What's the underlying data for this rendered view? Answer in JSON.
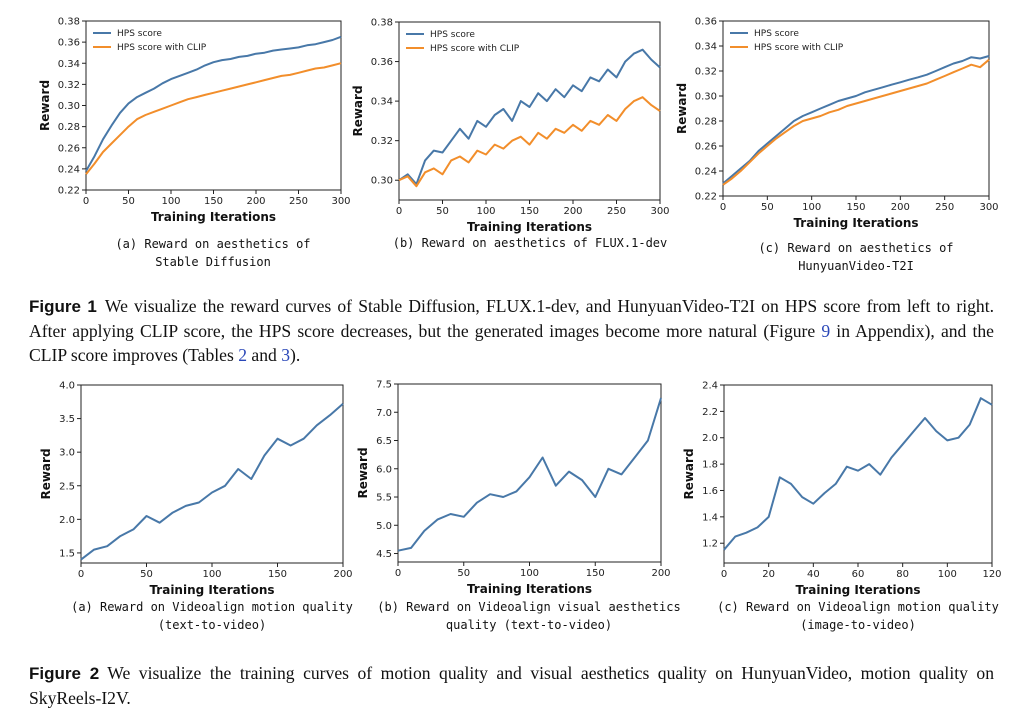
{
  "figure1": {
    "label": "Figure 1",
    "parts": [
      "We visualize the reward curves of Stable Diffusion, FLUX.1-dev, and HunyuanVideo-T2I on HPS score from left to right. After applying CLIP score, the HPS score decreases, but the generated images become more natural (Figure ",
      "9",
      " in Appendix), and the CLIP score improves (Tables ",
      "2",
      " and ",
      "3",
      ")."
    ]
  },
  "figure2": {
    "label": "Figure 2",
    "text": "We visualize the training curves of motion quality and visual aesthetics quality on HunyuanVideo, motion quality on SkyReels-I2V."
  },
  "colors": {
    "blue": "#4878a8",
    "orange": "#f28e2b",
    "axis": "#222222"
  },
  "chart_data": [
    {
      "type": "line",
      "caption": [
        "(a) Reward on aesthetics of",
        "Stable Diffusion"
      ],
      "xlabel": "Training Iterations",
      "ylabel": "Reward",
      "xlim": [
        0,
        300
      ],
      "ylim": [
        0.22,
        0.38
      ],
      "xticks": [
        0,
        50,
        100,
        150,
        200,
        250,
        300
      ],
      "yticks": [
        0.22,
        0.24,
        0.26,
        0.28,
        0.3,
        0.32,
        0.34,
        0.36,
        0.38
      ],
      "ytick_labels": [
        "0.22",
        "0.24",
        "0.26",
        "0.28",
        "0.30",
        "0.32",
        "0.34",
        "0.36",
        "0.38"
      ],
      "legend": "top-left",
      "series": [
        {
          "name": "HPS score",
          "color": "#4878a8",
          "x": [
            0,
            10,
            20,
            30,
            40,
            50,
            60,
            70,
            80,
            90,
            100,
            110,
            120,
            130,
            140,
            150,
            160,
            170,
            180,
            190,
            200,
            210,
            220,
            230,
            240,
            250,
            260,
            270,
            280,
            290,
            300
          ],
          "y": [
            0.238,
            0.252,
            0.268,
            0.281,
            0.293,
            0.302,
            0.308,
            0.312,
            0.316,
            0.321,
            0.325,
            0.328,
            0.331,
            0.334,
            0.338,
            0.341,
            0.343,
            0.344,
            0.346,
            0.347,
            0.349,
            0.35,
            0.352,
            0.353,
            0.354,
            0.355,
            0.357,
            0.358,
            0.36,
            0.362,
            0.365
          ]
        },
        {
          "name": "HPS score with CLIP",
          "color": "#f28e2b",
          "x": [
            0,
            10,
            20,
            30,
            40,
            50,
            60,
            70,
            80,
            90,
            100,
            110,
            120,
            130,
            140,
            150,
            160,
            170,
            180,
            190,
            200,
            210,
            220,
            230,
            240,
            250,
            260,
            270,
            280,
            290,
            300
          ],
          "y": [
            0.235,
            0.245,
            0.256,
            0.264,
            0.272,
            0.28,
            0.287,
            0.291,
            0.294,
            0.297,
            0.3,
            0.303,
            0.306,
            0.308,
            0.31,
            0.312,
            0.314,
            0.316,
            0.318,
            0.32,
            0.322,
            0.324,
            0.326,
            0.328,
            0.329,
            0.331,
            0.333,
            0.335,
            0.336,
            0.338,
            0.34
          ]
        }
      ]
    },
    {
      "type": "line",
      "caption": [
        "(b) Reward on aesthetics of FLUX.1-dev"
      ],
      "xlabel": "Training Iterations",
      "ylabel": "Reward",
      "xlim": [
        0,
        300
      ],
      "ylim": [
        0.29,
        0.38
      ],
      "xticks": [
        0,
        50,
        100,
        150,
        200,
        250,
        300
      ],
      "yticks": [
        0.3,
        0.32,
        0.34,
        0.36,
        0.38
      ],
      "ytick_labels": [
        "0.30",
        "0.32",
        "0.34",
        "0.36",
        "0.38"
      ],
      "legend": "top-left",
      "series": [
        {
          "name": "HPS score",
          "color": "#4878a8",
          "x": [
            0,
            10,
            20,
            30,
            40,
            50,
            60,
            70,
            80,
            90,
            100,
            110,
            120,
            130,
            140,
            150,
            160,
            170,
            180,
            190,
            200,
            210,
            220,
            230,
            240,
            250,
            260,
            270,
            280,
            290,
            300
          ],
          "y": [
            0.3,
            0.303,
            0.298,
            0.31,
            0.315,
            0.314,
            0.32,
            0.326,
            0.321,
            0.33,
            0.327,
            0.333,
            0.336,
            0.33,
            0.34,
            0.337,
            0.344,
            0.34,
            0.346,
            0.342,
            0.348,
            0.345,
            0.352,
            0.35,
            0.356,
            0.352,
            0.36,
            0.364,
            0.366,
            0.361,
            0.357
          ]
        },
        {
          "name": "HPS score with CLIP",
          "color": "#f28e2b",
          "x": [
            0,
            10,
            20,
            30,
            40,
            50,
            60,
            70,
            80,
            90,
            100,
            110,
            120,
            130,
            140,
            150,
            160,
            170,
            180,
            190,
            200,
            210,
            220,
            230,
            240,
            250,
            260,
            270,
            280,
            290,
            300
          ],
          "y": [
            0.3,
            0.302,
            0.297,
            0.304,
            0.306,
            0.303,
            0.31,
            0.312,
            0.309,
            0.315,
            0.313,
            0.318,
            0.316,
            0.32,
            0.322,
            0.318,
            0.324,
            0.321,
            0.326,
            0.324,
            0.328,
            0.325,
            0.33,
            0.328,
            0.333,
            0.33,
            0.336,
            0.34,
            0.342,
            0.338,
            0.335
          ]
        }
      ]
    },
    {
      "type": "line",
      "caption": [
        "(c) Reward on aesthetics of",
        "HunyuanVideo-T2I"
      ],
      "xlabel": "Training Iterations",
      "ylabel": "Reward",
      "xlim": [
        0,
        300
      ],
      "ylim": [
        0.22,
        0.36
      ],
      "xticks": [
        0,
        50,
        100,
        150,
        200,
        250,
        300
      ],
      "yticks": [
        0.22,
        0.24,
        0.26,
        0.28,
        0.3,
        0.32,
        0.34,
        0.36
      ],
      "ytick_labels": [
        "0.22",
        "0.24",
        "0.26",
        "0.28",
        "0.30",
        "0.32",
        "0.34",
        "0.36"
      ],
      "legend": "top-left",
      "series": [
        {
          "name": "HPS score",
          "color": "#4878a8",
          "x": [
            0,
            10,
            20,
            30,
            40,
            50,
            60,
            70,
            80,
            90,
            100,
            110,
            120,
            130,
            140,
            150,
            160,
            170,
            180,
            190,
            200,
            210,
            220,
            230,
            240,
            250,
            260,
            270,
            280,
            290,
            300
          ],
          "y": [
            0.23,
            0.236,
            0.242,
            0.248,
            0.256,
            0.262,
            0.268,
            0.274,
            0.28,
            0.284,
            0.287,
            0.29,
            0.293,
            0.296,
            0.298,
            0.3,
            0.303,
            0.305,
            0.307,
            0.309,
            0.311,
            0.313,
            0.315,
            0.317,
            0.32,
            0.323,
            0.326,
            0.328,
            0.331,
            0.33,
            0.332
          ]
        },
        {
          "name": "HPS score with CLIP",
          "color": "#f28e2b",
          "x": [
            0,
            10,
            20,
            30,
            40,
            50,
            60,
            70,
            80,
            90,
            100,
            110,
            120,
            130,
            140,
            150,
            160,
            170,
            180,
            190,
            200,
            210,
            220,
            230,
            240,
            250,
            260,
            270,
            280,
            290,
            300
          ],
          "y": [
            0.229,
            0.234,
            0.24,
            0.247,
            0.254,
            0.26,
            0.266,
            0.271,
            0.276,
            0.28,
            0.282,
            0.284,
            0.287,
            0.289,
            0.292,
            0.294,
            0.296,
            0.298,
            0.3,
            0.302,
            0.304,
            0.306,
            0.308,
            0.31,
            0.313,
            0.316,
            0.319,
            0.322,
            0.325,
            0.323,
            0.329
          ]
        }
      ]
    },
    {
      "type": "line",
      "caption": [
        "(a) Reward on Videoalign motion quality",
        "(text-to-video)"
      ],
      "xlabel": "Training Iterations",
      "ylabel": "Reward",
      "xlim": [
        0,
        200
      ],
      "ylim": [
        1.35,
        4.0
      ],
      "xticks": [
        0,
        50,
        100,
        150,
        200
      ],
      "yticks": [
        1.5,
        2.0,
        2.5,
        3.0,
        3.5,
        4.0
      ],
      "ytick_labels": [
        "1.5",
        "2.0",
        "2.5",
        "3.0",
        "3.5",
        "4.0"
      ],
      "series": [
        {
          "name": "",
          "color": "#4878a8",
          "x": [
            0,
            10,
            20,
            30,
            40,
            50,
            60,
            70,
            80,
            90,
            100,
            110,
            120,
            130,
            140,
            150,
            160,
            170,
            180,
            190,
            200
          ],
          "y": [
            1.4,
            1.55,
            1.6,
            1.75,
            1.85,
            2.05,
            1.95,
            2.1,
            2.2,
            2.25,
            2.4,
            2.5,
            2.75,
            2.6,
            2.95,
            3.2,
            3.1,
            3.2,
            3.4,
            3.55,
            3.72
          ]
        }
      ]
    },
    {
      "type": "line",
      "caption": [
        "(b) Reward on Videoalign visual aesthetics",
        "quality (text-to-video)"
      ],
      "xlabel": "Training Iterations",
      "ylabel": "Reward",
      "xlim": [
        0,
        200
      ],
      "ylim": [
        4.35,
        7.5
      ],
      "xticks": [
        0,
        50,
        100,
        150,
        200
      ],
      "yticks": [
        4.5,
        5.0,
        5.5,
        6.0,
        6.5,
        7.0,
        7.5
      ],
      "ytick_labels": [
        "4.5",
        "5.0",
        "5.5",
        "6.0",
        "6.5",
        "7.0",
        "7.5"
      ],
      "series": [
        {
          "name": "",
          "color": "#4878a8",
          "x": [
            0,
            10,
            20,
            30,
            40,
            50,
            60,
            70,
            80,
            90,
            100,
            110,
            120,
            130,
            140,
            150,
            160,
            170,
            180,
            190,
            200
          ],
          "y": [
            4.55,
            4.6,
            4.9,
            5.1,
            5.2,
            5.15,
            5.4,
            5.55,
            5.5,
            5.6,
            5.85,
            6.2,
            5.7,
            5.95,
            5.8,
            5.5,
            6.0,
            5.9,
            6.2,
            6.5,
            7.25
          ]
        }
      ]
    },
    {
      "type": "line",
      "caption": [
        "(c) Reward on Videoalign motion quality",
        "(image-to-video)"
      ],
      "xlabel": "Training Iterations",
      "ylabel": "Reward",
      "xlim": [
        0,
        120
      ],
      "ylim": [
        1.05,
        2.4
      ],
      "xticks": [
        0,
        20,
        40,
        60,
        80,
        100,
        120
      ],
      "yticks": [
        1.2,
        1.4,
        1.6,
        1.8,
        2.0,
        2.2,
        2.4
      ],
      "ytick_labels": [
        "1.2",
        "1.4",
        "1.6",
        "1.8",
        "2.0",
        "2.2",
        "2.4"
      ],
      "series": [
        {
          "name": "",
          "color": "#4878a8",
          "x": [
            0,
            5,
            10,
            15,
            20,
            25,
            30,
            35,
            40,
            45,
            50,
            55,
            60,
            65,
            70,
            75,
            80,
            85,
            90,
            95,
            100,
            105,
            110,
            115,
            120
          ],
          "y": [
            1.15,
            1.25,
            1.28,
            1.32,
            1.4,
            1.7,
            1.65,
            1.55,
            1.5,
            1.58,
            1.65,
            1.78,
            1.75,
            1.8,
            1.72,
            1.85,
            1.95,
            2.05,
            2.15,
            2.05,
            1.98,
            2.0,
            2.1,
            2.3,
            2.25
          ]
        }
      ]
    }
  ]
}
